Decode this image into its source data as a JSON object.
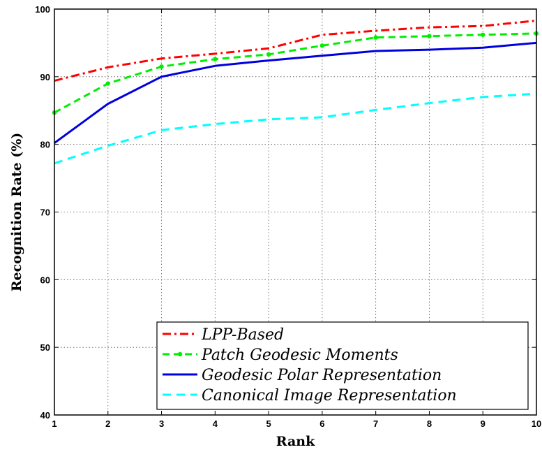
{
  "chart_data": {
    "type": "line",
    "xlabel": "Rank",
    "ylabel": "Recognition Rate (%)",
    "xlim": [
      1,
      10
    ],
    "ylim": [
      40,
      100
    ],
    "xticks": [
      1,
      2,
      3,
      4,
      5,
      6,
      7,
      8,
      9,
      10
    ],
    "yticks": [
      40,
      50,
      60,
      70,
      80,
      90,
      100
    ],
    "grid": true,
    "legend_position": "bottom-right",
    "x": [
      1,
      2,
      3,
      4,
      5,
      6,
      7,
      8,
      9,
      10
    ],
    "series": [
      {
        "name": "LPP-Based",
        "color": "#ff0000",
        "style": "dash-dot",
        "values": [
          89.4,
          91.4,
          92.7,
          93.4,
          94.2,
          96.2,
          96.8,
          97.3,
          97.5,
          98.3
        ]
      },
      {
        "name": "Patch Geodesic Moments",
        "color": "#00ee00",
        "style": "dashed-markers",
        "values": [
          84.7,
          89.0,
          91.5,
          92.6,
          93.3,
          94.6,
          95.8,
          96.0,
          96.2,
          96.4
        ]
      },
      {
        "name": "Geodesic Polar Representation",
        "color": "#0000dd",
        "style": "solid",
        "values": [
          80.2,
          86.0,
          90.0,
          91.6,
          92.4,
          93.1,
          93.8,
          94.0,
          94.3,
          95.0
        ]
      },
      {
        "name": "Canonical Image Representation",
        "color": "#00ffff",
        "style": "dashed",
        "values": [
          77.2,
          79.8,
          82.1,
          83.0,
          83.7,
          84.0,
          85.1,
          86.1,
          87.0,
          87.5
        ]
      }
    ]
  }
}
